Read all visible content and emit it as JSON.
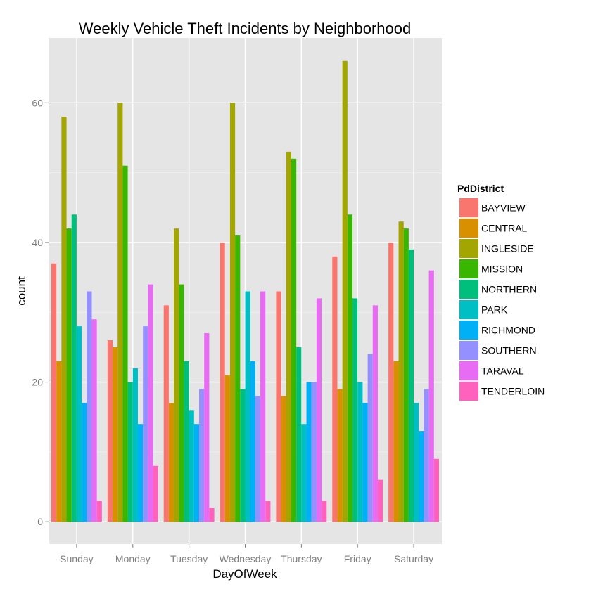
{
  "chart_data": {
    "type": "bar",
    "title": "Weekly Vehicle Theft Incidents by Neighborhood",
    "xlabel": "DayOfWeek",
    "ylabel": "count",
    "ylim": [
      -3.2,
      69.3
    ],
    "yticks": [
      0,
      20,
      40,
      60
    ],
    "grid": true,
    "legend_position": "right",
    "legend_title": "PdDistrict",
    "categories": [
      "Sunday",
      "Monday",
      "Tuesday",
      "Wednesday",
      "Thursday",
      "Friday",
      "Saturday"
    ],
    "series": [
      {
        "name": "BAYVIEW",
        "color": "#F8766D",
        "values": [
          37,
          26,
          31,
          40,
          33,
          38,
          40
        ]
      },
      {
        "name": "CENTRAL",
        "color": "#D89000",
        "values": [
          23,
          25,
          17,
          21,
          18,
          19,
          23
        ]
      },
      {
        "name": "INGLESIDE",
        "color": "#A3A500",
        "values": [
          58,
          60,
          42,
          60,
          53,
          66,
          43
        ]
      },
      {
        "name": "MISSION",
        "color": "#39B600",
        "values": [
          42,
          51,
          34,
          41,
          52,
          44,
          42
        ]
      },
      {
        "name": "NORTHERN",
        "color": "#00BF7D",
        "values": [
          44,
          20,
          23,
          19,
          25,
          32,
          39
        ]
      },
      {
        "name": "PARK",
        "color": "#00BFC4",
        "values": [
          28,
          22,
          16,
          33,
          14,
          20,
          17
        ]
      },
      {
        "name": "RICHMOND",
        "color": "#00B0F6",
        "values": [
          17,
          14,
          14,
          23,
          20,
          17,
          13
        ]
      },
      {
        "name": "SOUTHERN",
        "color": "#9590FF",
        "values": [
          33,
          28,
          19,
          18,
          20,
          24,
          19
        ]
      },
      {
        "name": "TARAVAL",
        "color": "#E76BF3",
        "values": [
          29,
          34,
          27,
          33,
          32,
          31,
          36
        ]
      },
      {
        "name": "TENDERLOIN",
        "color": "#FF62BC",
        "values": [
          3,
          8,
          2,
          3,
          3,
          6,
          9
        ]
      }
    ]
  }
}
